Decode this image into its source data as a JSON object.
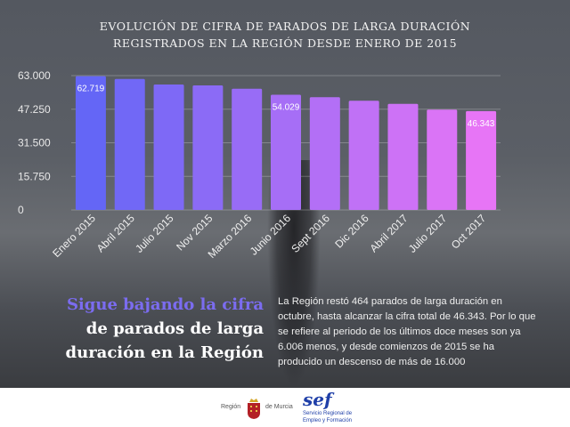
{
  "title": {
    "line1": "EVOLUCIÓN DE CIFRA DE PARADOS DE LARGA DURACIÓN",
    "line2": "REGISTRADOS EN LA REGIÓN DESDE ENERO DE 2015"
  },
  "chart_data": {
    "type": "bar",
    "title": "EVOLUCIÓN DE CIFRA DE PARADOS DE LARGA DURACIÓN REGISTRADOS EN LA REGIÓN DESDE ENERO DE 2015",
    "categories": [
      "Enero 2015",
      "Abril 2015",
      "Julio 2015",
      "Nov 2015",
      "Marzo 2016",
      "Junio 2016",
      "Sept 2016",
      "Dic 2016",
      "Abril 2017",
      "Julio 2017",
      "Oct 2017"
    ],
    "values": [
      62719,
      61450,
      58830,
      58410,
      56870,
      54029,
      52860,
      51190,
      49770,
      47020,
      46343
    ],
    "data_labels": {
      "0": "62.719",
      "5": "54.029",
      "10": "46.343"
    },
    "yticks": [
      "0",
      "15.750",
      "31.500",
      "47.250",
      "63.000"
    ],
    "ytick_values": [
      0,
      15750,
      31500,
      47250,
      63000
    ],
    "ylim": [
      0,
      63000
    ],
    "grid": true,
    "colors": {
      "start": "#6466f6",
      "end": "#e775f6"
    }
  },
  "headline": {
    "line1": "Sigue bajando la cifra",
    "line2": "de parados de larga",
    "line3": "duración en la Región"
  },
  "body_text": "La Región restó 464 parados de larga duración en octubre, hasta alcanzar la cifra total de 46.343. Por lo que se refiere al periodo de los últimos doce meses son ya 6.006 menos, y desde comienzos de 2015 se ha producido un descenso de más de 16.000",
  "logos": {
    "region_left": "Región",
    "region_right": "de Murcia",
    "sef": "sef",
    "sef_sub1": "Servicio Regional de",
    "sef_sub2": "Empleo y Formación"
  }
}
